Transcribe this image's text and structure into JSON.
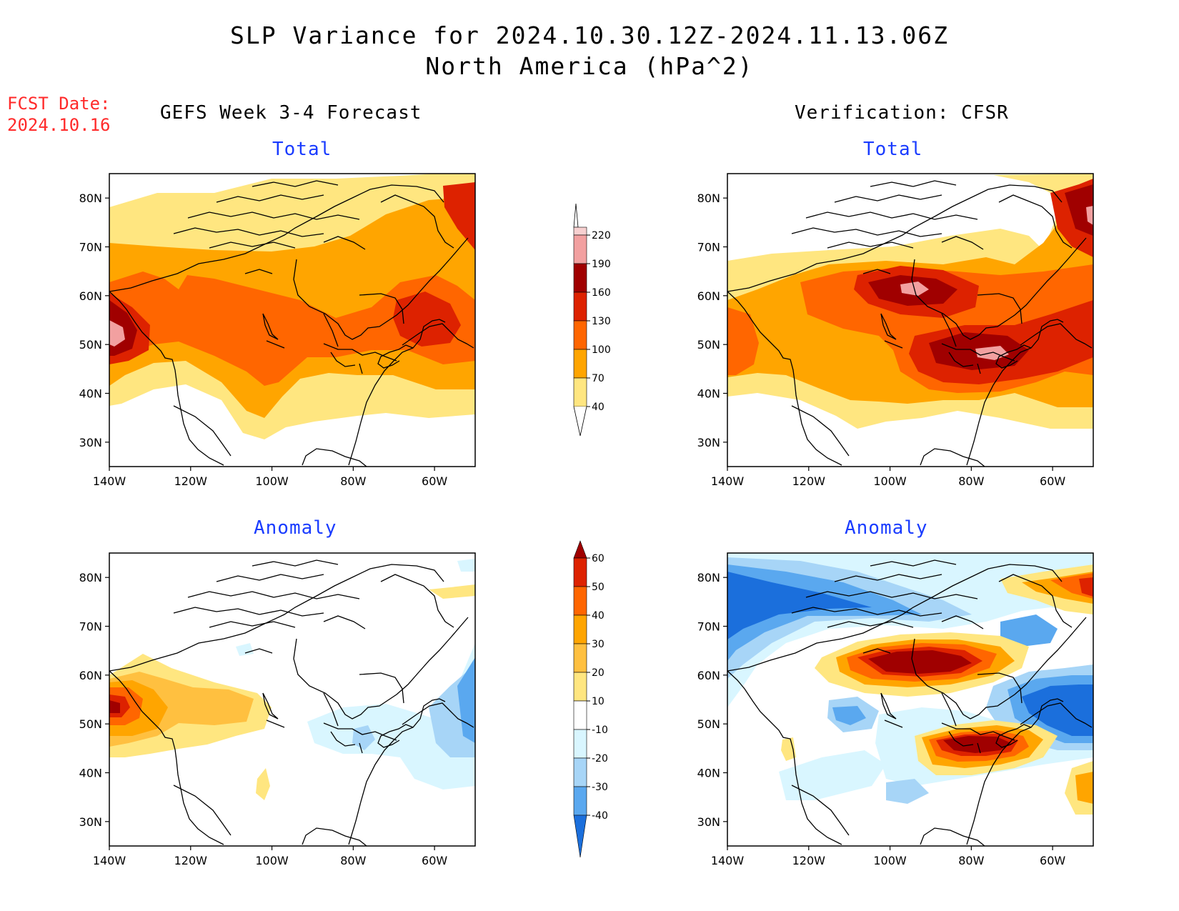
{
  "title": {
    "line1": "SLP Variance for 2024.10.30.12Z-2024.11.13.06Z",
    "line2": "North America (hPa^2)"
  },
  "fcst": {
    "label": "FCST Date:",
    "date": "2024.10.16"
  },
  "columns": {
    "left": "GEFS Week 3-4 Forecast",
    "right": "Verification: CFSR"
  },
  "panels": [
    {
      "id": "fcst-total",
      "subtitle": "Total"
    },
    {
      "id": "verif-total",
      "subtitle": "Total"
    },
    {
      "id": "fcst-anomaly",
      "subtitle": "Anomaly"
    },
    {
      "id": "verif-anomaly",
      "subtitle": "Anomaly"
    }
  ],
  "axes": {
    "lat_labels": [
      "80N",
      "70N",
      "60N",
      "50N",
      "40N",
      "30N"
    ],
    "lon_labels": [
      "140W",
      "120W",
      "100W",
      "80W",
      "60W"
    ],
    "lat_range": [
      25,
      85
    ],
    "lon_range": [
      -140,
      -50
    ]
  },
  "colorbars": {
    "total": {
      "labels": [
        "220",
        "190",
        "160",
        "130",
        "100",
        "70",
        "40"
      ],
      "colors": [
        "#ffffff",
        "#f7d0d0",
        "#f2a0a0",
        "#a00000",
        "#dd2200",
        "#ff6600",
        "#ffa500",
        "#ffe680"
      ]
    },
    "anomaly": {
      "labels": [
        "60",
        "50",
        "40",
        "30",
        "20",
        "10",
        "-10",
        "-20",
        "-30",
        "-40"
      ],
      "colors": [
        "#a00000",
        "#dd2200",
        "#ff6600",
        "#ffa500",
        "#ffc040",
        "#ffe680",
        "#ffffff",
        "#d9f6ff",
        "#a7d5f7",
        "#5aa8ef",
        "#1b6fdc"
      ]
    }
  }
}
